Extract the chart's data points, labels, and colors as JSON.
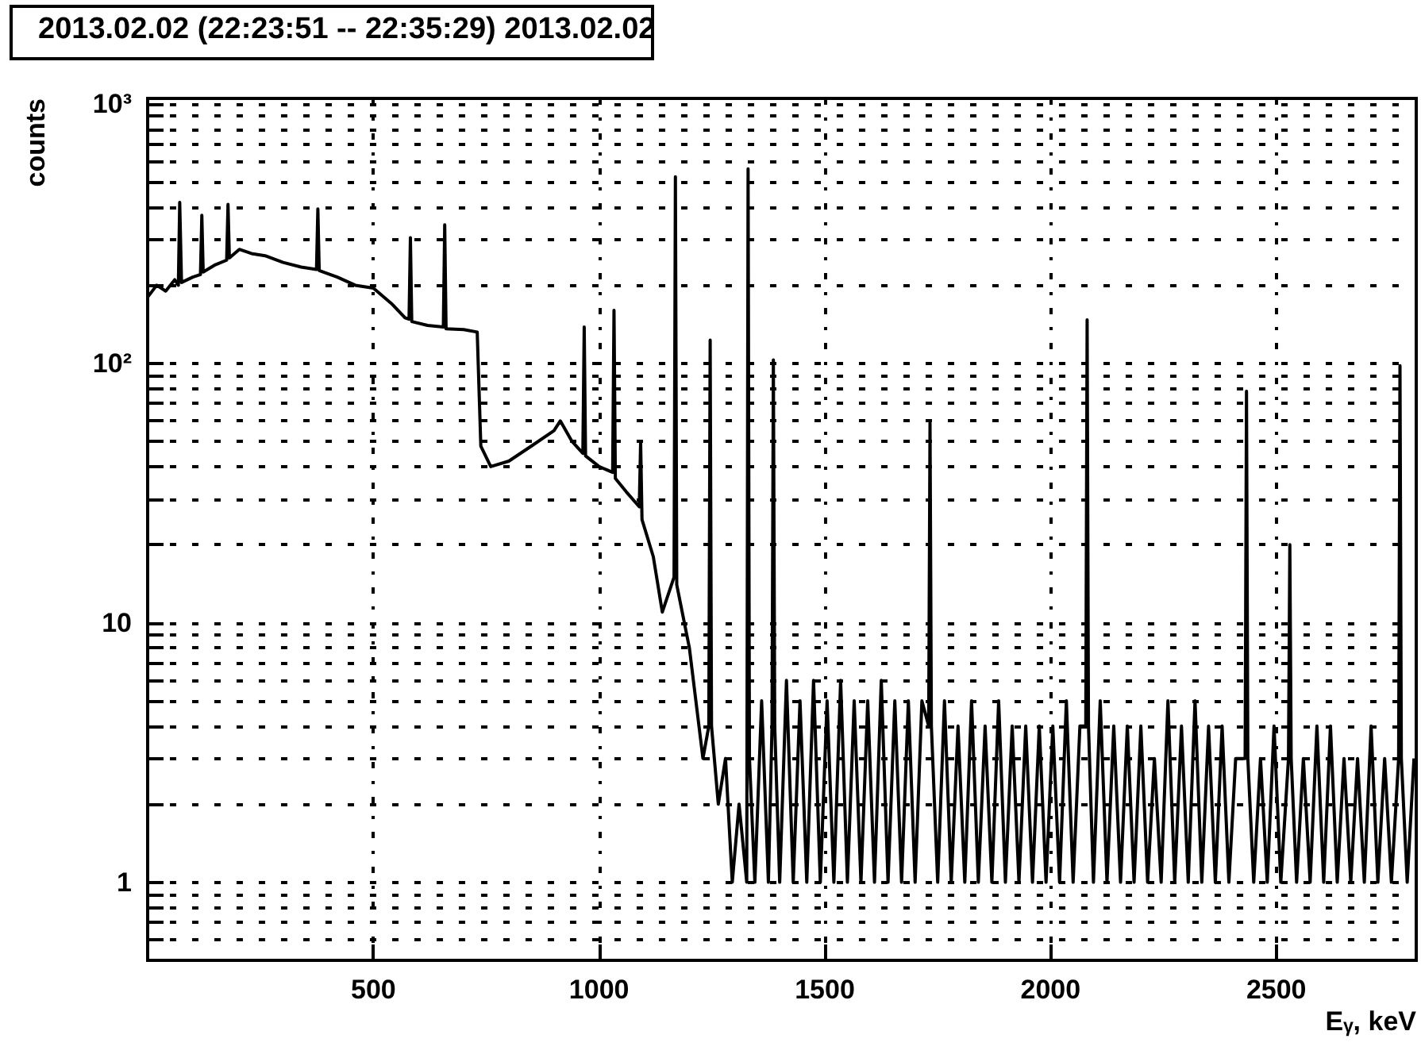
{
  "chart_data": {
    "type": "line",
    "title": "2013.02.02 (22:23:51 -- 22:35:29) 2013.02.02",
    "xlabel": "Eᵧ, keV",
    "ylabel": "counts",
    "log": "y",
    "grid": true,
    "marker": "none",
    "xlim": [
      0,
      2810
    ],
    "xticks": [
      500,
      1000,
      1500,
      2000,
      2500
    ],
    "ylim": [
      0.5,
      1050
    ],
    "yticks": [
      {
        "value": 0.6,
        "label": null
      },
      {
        "value": 0.7,
        "label": null
      },
      {
        "value": 0.8,
        "label": null
      },
      {
        "value": 0.9,
        "label": null
      },
      1,
      {
        "value": 2,
        "label": null
      },
      {
        "value": 3,
        "label": null
      },
      {
        "value": 4,
        "label": null
      },
      {
        "value": 5,
        "label": null
      },
      {
        "value": 6,
        "label": null
      },
      {
        "value": 7,
        "label": null
      },
      {
        "value": 8,
        "label": null
      },
      {
        "value": 9,
        "label": null
      },
      10,
      {
        "value": 20,
        "label": null
      },
      {
        "value": 30,
        "label": null
      },
      {
        "value": 40,
        "label": null
      },
      {
        "value": 50,
        "label": null
      },
      {
        "value": 60,
        "label": null
      },
      {
        "value": 70,
        "label": null
      },
      {
        "value": 80,
        "label": null
      },
      {
        "value": 90,
        "label": null
      },
      {
        "value": 100,
        "label": "10²"
      },
      {
        "value": 200,
        "label": null
      },
      {
        "value": 300,
        "label": null
      },
      {
        "value": 400,
        "label": null
      },
      {
        "value": 500,
        "label": null
      },
      {
        "value": 600,
        "label": null
      },
      {
        "value": 700,
        "label": null
      },
      {
        "value": 800,
        "label": null
      },
      {
        "value": 900,
        "label": null
      },
      {
        "value": 1000,
        "label": "10³"
      }
    ],
    "series": [
      {
        "color": "#000000",
        "x": [
          0,
          20,
          40,
          60,
          68,
          71,
          75,
          100,
          117,
          120,
          123,
          150,
          175,
          178,
          181,
          203,
          230,
          260,
          300,
          340,
          374,
          377,
          380,
          420,
          460,
          500,
          540,
          570,
          579,
          582,
          585,
          620,
          655,
          658,
          661,
          700,
          730,
          738,
          760,
          800,
          850,
          900,
          914,
          940,
          964,
          967,
          970,
          1000,
          1030,
          1033,
          1036,
          1060,
          1089,
          1092,
          1095,
          1120,
          1140,
          1166,
          1169,
          1172,
          1200,
          1230,
          1243,
          1246,
          1249,
          1264,
          1280,
          1295,
          1310,
          1327,
          1330,
          1333,
          1345,
          1360,
          1375,
          1383,
          1386,
          1389,
          1400,
          1415,
          1430,
          1445,
          1460,
          1475,
          1490,
          1505,
          1520,
          1535,
          1550,
          1565,
          1580,
          1595,
          1610,
          1625,
          1640,
          1655,
          1670,
          1685,
          1700,
          1715,
          1730,
          1733,
          1736,
          1750,
          1765,
          1780,
          1795,
          1810,
          1825,
          1840,
          1855,
          1870,
          1885,
          1900,
          1915,
          1930,
          1945,
          1960,
          1975,
          1990,
          2005,
          2020,
          2035,
          2050,
          2065,
          2078,
          2081,
          2084,
          2095,
          2110,
          2125,
          2140,
          2155,
          2170,
          2185,
          2200,
          2215,
          2230,
          2245,
          2260,
          2275,
          2290,
          2305,
          2320,
          2335,
          2350,
          2365,
          2380,
          2395,
          2410,
          2431,
          2434,
          2437,
          2450,
          2465,
          2480,
          2495,
          2510,
          2527,
          2530,
          2533,
          2545,
          2560,
          2575,
          2590,
          2605,
          2620,
          2635,
          2650,
          2665,
          2680,
          2695,
          2710,
          2725,
          2740,
          2755,
          2771,
          2774,
          2777,
          2790,
          2805
        ],
        "values": [
          180,
          200,
          190,
          210,
          200,
          417,
          205,
          215,
          220,
          372,
          225,
          240,
          250,
          410,
          255,
          275,
          265,
          260,
          245,
          235,
          230,
          394,
          228,
          215,
          200,
          195,
          170,
          150,
          148,
          305,
          145,
          140,
          138,
          342,
          136,
          135,
          132,
          48,
          40,
          42,
          48,
          55,
          60,
          50,
          45,
          138,
          44,
          40,
          38,
          160,
          36,
          32,
          28,
          50,
          25,
          18,
          11,
          15,
          524,
          14,
          8,
          3,
          4,
          123,
          4,
          2,
          3,
          1,
          2,
          1,
          562,
          3,
          1,
          5,
          1,
          4,
          103,
          4,
          1,
          6,
          1,
          5,
          1,
          6,
          1,
          5,
          1,
          6,
          1,
          5,
          1,
          5,
          1,
          6,
          1,
          5,
          1,
          5,
          1,
          5,
          4,
          59,
          4,
          1,
          5,
          1,
          4,
          1,
          5,
          1,
          4,
          1,
          5,
          1,
          4,
          1,
          4,
          1,
          4,
          1,
          4,
          1,
          5,
          1,
          4,
          4,
          147,
          4,
          1,
          5,
          1,
          4,
          1,
          4,
          1,
          4,
          1,
          3,
          1,
          5,
          1,
          4,
          1,
          5,
          1,
          4,
          1,
          4,
          1,
          3,
          3,
          78,
          3,
          1,
          3,
          1,
          4,
          1,
          3,
          20,
          3,
          1,
          3,
          1,
          4,
          1,
          4,
          1,
          3,
          1,
          3,
          1,
          4,
          1,
          3,
          1,
          3,
          98,
          3,
          1,
          3
        ]
      }
    ]
  }
}
